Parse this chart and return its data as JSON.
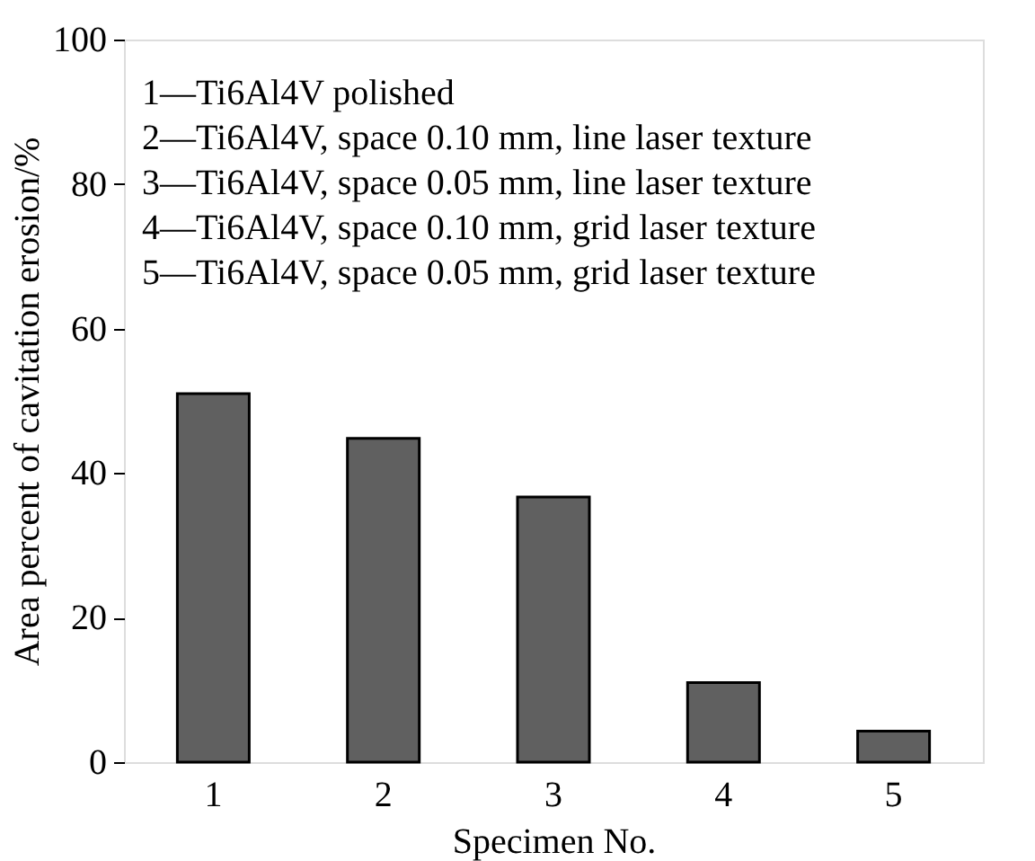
{
  "chart_data": {
    "type": "bar",
    "xlabel": "Specimen No.",
    "ylabel": "Area percent of cavitation erosion/%",
    "categories": [
      "1",
      "2",
      "3",
      "4",
      "5"
    ],
    "values": [
      51.0,
      44.8,
      36.7,
      11.0,
      4.3
    ],
    "color": "#606060",
    "ylim": [
      0,
      100
    ],
    "yticks": [
      0,
      20,
      40,
      60,
      80,
      100
    ],
    "grid": false,
    "annotations": [
      "1—Ti6Al4V polished",
      "2—Ti6Al4V, space 0.10 mm, line laser texture",
      "3—Ti6Al4V, space 0.05 mm, line laser texture",
      "4—Ti6Al4V, space 0.10 mm, grid laser texture",
      "5—Ti6Al4V, space 0.05 mm, grid laser texture"
    ]
  }
}
